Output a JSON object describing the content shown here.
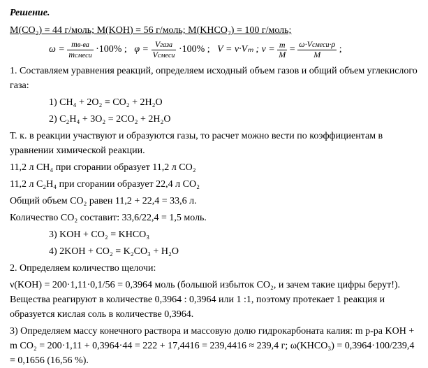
{
  "title": "Решение.",
  "molar_masses": "M(CO₂) = 44 г/моль; M(KOH) = 56 г/моль; M(KHCO₃) = 100 г/моль;",
  "formulas": {
    "omega_eq": "ω =",
    "omega_frac_num": "mᵢ₋ва",
    "omega_frac_den": "mсмеси",
    "pct": "·100% ;",
    "phi_eq": "φ =",
    "phi_frac_num": "Vгаза",
    "phi_frac_den": "Vсмеси",
    "v_eq": "V = ν·Vₘ ;",
    "nu_eq": "ν =",
    "nu_frac1_num": "m",
    "nu_frac1_den": "M",
    "eqsign": "=",
    "nu_frac2_num": "ω·Vсмеси·ρ",
    "nu_frac2_den": "M",
    "tail": ";"
  },
  "p1": "1. Составляем уравнения реакций, определяем исходный объем газов и общий объем углекислого газа:",
  "eq1": "1) CH₄ + 2O₂ = CO₂ + 2H₂O",
  "eq2": "2) C₂H₄ + 3O₂ = 2CO₂ + 2H₂O",
  "p2": "Т. к. в реакции участвуют и образуются газы, то расчет можно вести по коэффициентам в уравнении химической реакции.",
  "p3": "11,2 л CH₄ при сгорании образует 11,2 л CO₂",
  "p4": "11,2 л C₂H₄ при сгорании образует 22,4 л CO₂",
  "p5": "Общий объем CO₂ равен 11,2 + 22,4 = 33,6 л.",
  "p6": "Количество CO₂ составит: 33,6/22,4 = 1,5 моль.",
  "eq3": "3) KOH + CO₂ = KHCO₃",
  "eq4": "4) 2KOH + CO₂ = K₂CO₃ + H₂O",
  "p7": "2. Определяем количество щелочи:",
  "p8": "ν(KOH) = 200·1,11·0,1/56 = 0,3964 моль (большой избыток CO₂, и зачем такие цифры берут!). Вещества реагируют в количестве 0,3964 : 0,3964 или 1 :1, поэтому протекает 1 реакция и образуется кислая соль в количестве 0,3964.",
  "p9": "3) Определяем массу конечного раствора и массовую долю гидрокарбоната калия: m р-ра KOH + m CO₂ = 200·1,11 + 0,3964·44 = 222 + 17,4416 = 239,4416 ≈ 239,4 г;      ω(KHCO₃) = 0,3964·100/239,4 = 0,1656 (16,56 %)."
}
